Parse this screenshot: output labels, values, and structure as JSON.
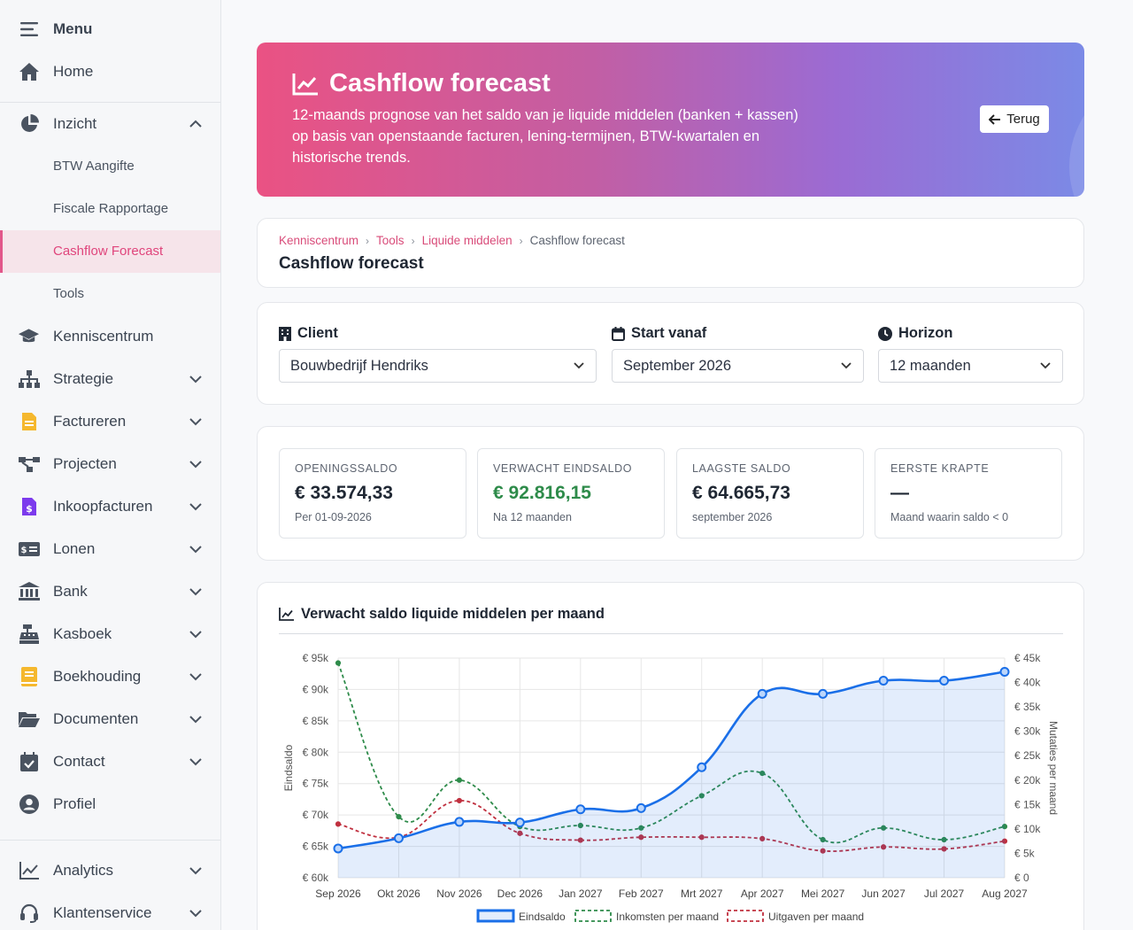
{
  "sidebar": {
    "menu": "Menu",
    "home": "Home",
    "inzicht": "Inzicht",
    "inzicht_items": [
      "BTW Aangifte",
      "Fiscale Rapportage",
      "Cashflow Forecast",
      "Tools"
    ],
    "items": [
      "Kenniscentrum",
      "Strategie",
      "Factureren",
      "Projecten",
      "Inkoopfacturen",
      "Lonen",
      "Bank",
      "Kasboek",
      "Boekhouding",
      "Documenten",
      "Contact",
      "Profiel"
    ],
    "bottom": [
      "Analytics",
      "Klantenservice"
    ]
  },
  "hero": {
    "title": "Cashflow forecast",
    "description": "12-maands prognose van het saldo van je liquide middelen (banken + kassen) op basis van openstaande facturen, lening-termijnen, BTW-kwartalen en historische trends.",
    "back_label": "Terug"
  },
  "breadcrumb": [
    "Kenniscentrum",
    "Tools",
    "Liquide middelen",
    "Cashflow forecast"
  ],
  "page_title": "Cashflow forecast",
  "filters": {
    "client_label": "Client",
    "client_value": "Bouwbedrijf Hendriks",
    "start_label": "Start vanaf",
    "start_value": "September 2026",
    "horizon_label": "Horizon",
    "horizon_value": "12 maanden"
  },
  "kpis": [
    {
      "label": "OPENINGSSALDO",
      "value": "€ 33.574,33",
      "sub": "Per 01-09-2026"
    },
    {
      "label": "VERWACHT EINDSALDO",
      "value": "€ 92.816,15",
      "sub": "Na 12 maanden"
    },
    {
      "label": "LAAGSTE SALDO",
      "value": "€ 64.665,73",
      "sub": "september 2026"
    },
    {
      "label": "EERSTE KRAPTE",
      "value": "—",
      "sub": "Maand waarin saldo < 0"
    }
  ],
  "chart_title": "Verwacht saldo liquide middelen per maand",
  "colors": {
    "accent": "#e0457c",
    "eind": "#1a6fe8",
    "inkomsten": "#2e8b4a",
    "uitgaven": "#c0303f",
    "positive": "#2e8b4a"
  },
  "chart_data": {
    "type": "line",
    "categories": [
      "Sep 2026",
      "Okt 2026",
      "Nov 2026",
      "Dec 2026",
      "Jan 2027",
      "Feb 2027",
      "Mrt 2027",
      "Apr 2027",
      "Mei 2027",
      "Jun 2027",
      "Jul 2027",
      "Aug 2027"
    ],
    "ylabel": "Eindsaldo",
    "y2label": "Mutaties per maand",
    "ylim": [
      60000,
      95000
    ],
    "y2lim": [
      0,
      45000
    ],
    "y_ticks": [
      "€ 60k",
      "€ 65k",
      "€ 70k",
      "€ 75k",
      "€ 80k",
      "€ 85k",
      "€ 90k",
      "€ 95k"
    ],
    "y2_ticks": [
      "€ 0",
      "€ 5k",
      "€ 10k",
      "€ 15k",
      "€ 20k",
      "€ 25k",
      "€ 30k",
      "€ 35k",
      "€ 40k",
      "€ 45k"
    ],
    "grid": true,
    "legend_position": "bottom",
    "series": [
      {
        "name": "Eindsaldo",
        "axis": "left",
        "fill": true,
        "values": [
          64665.73,
          66300,
          68900,
          68800,
          70900,
          71100,
          77600,
          89300,
          89300,
          91400,
          91400,
          92816.15
        ]
      },
      {
        "name": "Inkomsten per maand",
        "axis": "right",
        "dashed": true,
        "values": [
          44000,
          12500,
          20000,
          10500,
          10700,
          10200,
          16800,
          21400,
          7800,
          10200,
          7800,
          10500
        ]
      },
      {
        "name": "Uitgaven per maand",
        "axis": "right",
        "dashed": true,
        "values": [
          11000,
          8300,
          15800,
          9100,
          7700,
          8300,
          8300,
          8000,
          5500,
          6300,
          5900,
          7500
        ]
      }
    ]
  }
}
